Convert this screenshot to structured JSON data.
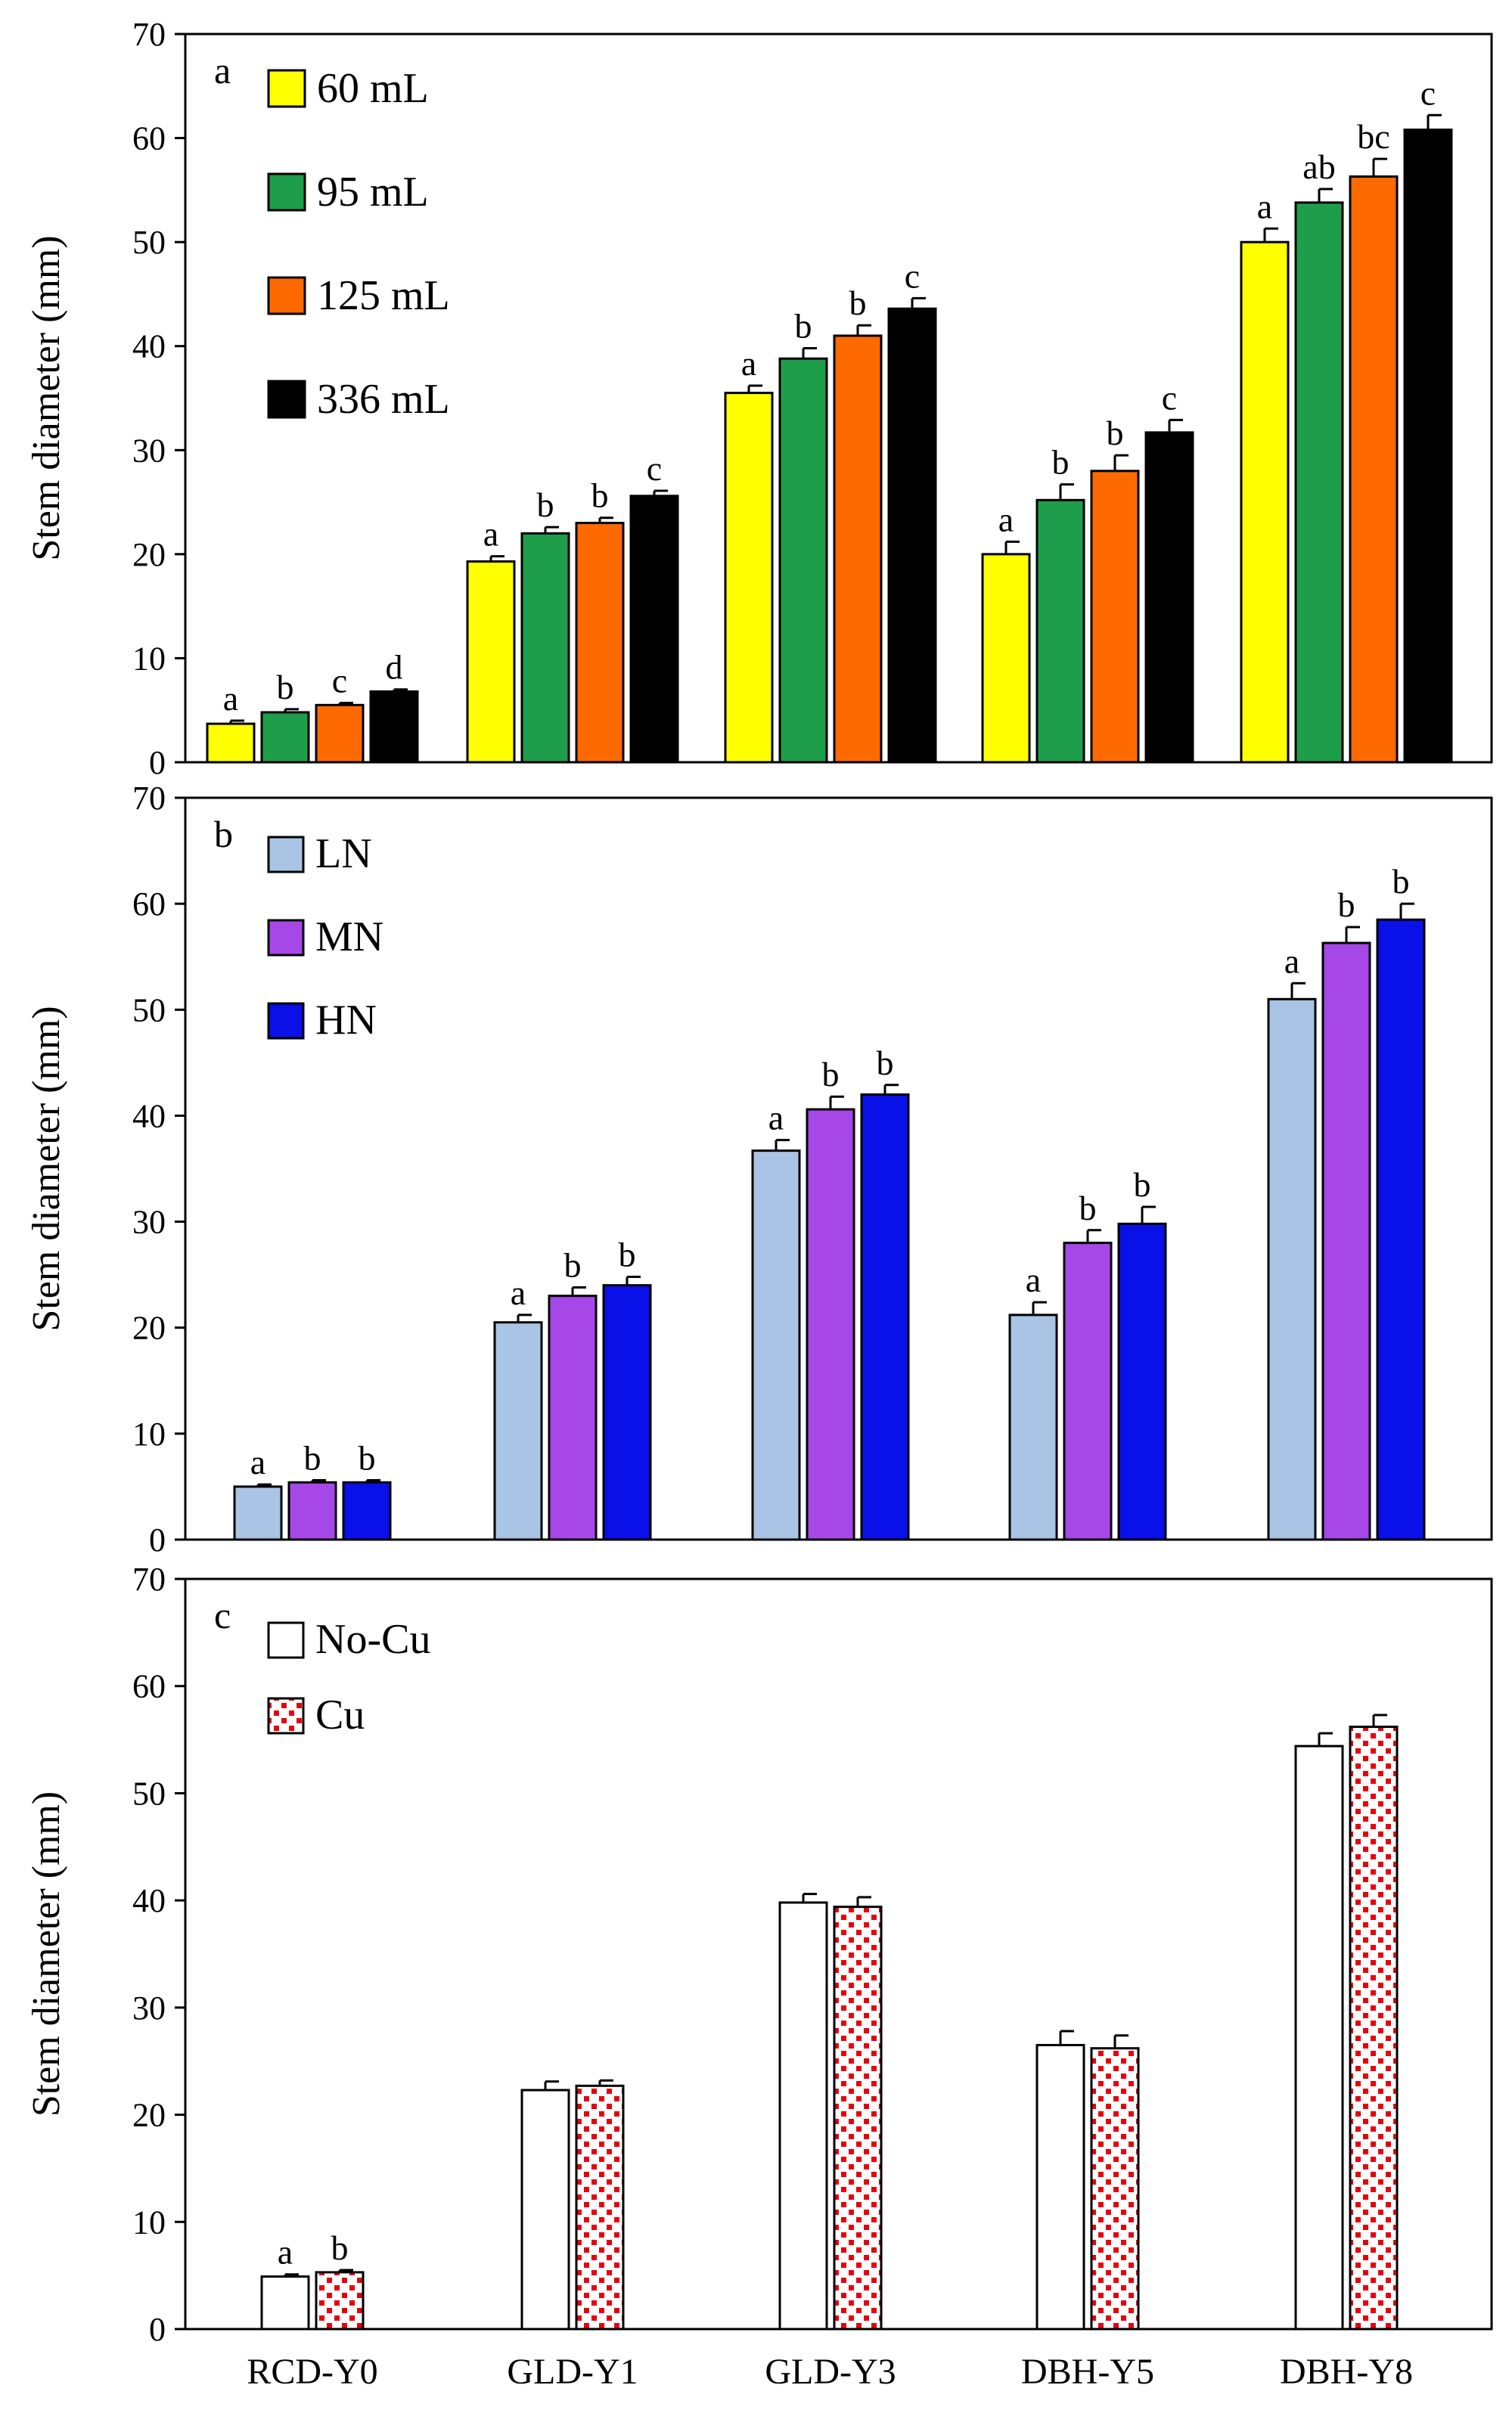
{
  "chart_data": [
    {
      "type": "bar",
      "panel_label": "a",
      "ylabel": "Stem diameter (mm)",
      "xlabel": "",
      "ylim": [
        0,
        70
      ],
      "yticks": [
        0,
        10,
        20,
        30,
        40,
        50,
        60,
        70
      ],
      "categories": [
        "RCD-Y0",
        "GLD-Y1",
        "GLD-Y3",
        "DBH-Y5",
        "DBH-Y8"
      ],
      "legend_position": "top-left",
      "series": [
        {
          "name": "60 mL",
          "color": "#FFFF00",
          "pattern": "solid",
          "values": [
            3.7,
            19.3,
            35.5,
            20.0,
            50.0
          ],
          "errors": [
            0.3,
            0.5,
            0.7,
            1.2,
            1.3
          ],
          "letters": [
            "a",
            "a",
            "a",
            "a",
            "a"
          ]
        },
        {
          "name": "95 mL",
          "color": "#1E9E4A",
          "pattern": "solid",
          "values": [
            4.8,
            22.0,
            38.8,
            25.2,
            53.8
          ],
          "errors": [
            0.3,
            0.6,
            1.0,
            1.5,
            1.3
          ],
          "letters": [
            "b",
            "b",
            "b",
            "b",
            "ab"
          ]
        },
        {
          "name": "125 mL",
          "color": "#FF6A00",
          "pattern": "solid",
          "values": [
            5.5,
            23.0,
            41.0,
            28.0,
            56.3
          ],
          "errors": [
            0.2,
            0.5,
            1.0,
            1.5,
            1.7
          ],
          "letters": [
            "c",
            "b",
            "b",
            "b",
            "bc"
          ]
        },
        {
          "name": "336 mL",
          "color": "#000000",
          "pattern": "solid",
          "values": [
            6.8,
            25.6,
            43.6,
            31.7,
            60.8
          ],
          "errors": [
            0.2,
            0.5,
            1.0,
            1.2,
            1.4
          ],
          "letters": [
            "d",
            "c",
            "c",
            "c",
            "c"
          ]
        }
      ]
    },
    {
      "type": "bar",
      "panel_label": "b",
      "ylabel": "Stem diameter (mm)",
      "xlabel": "",
      "ylim": [
        0,
        70
      ],
      "yticks": [
        0,
        10,
        20,
        30,
        40,
        50,
        60,
        70
      ],
      "categories": [
        "RCD-Y0",
        "GLD-Y1",
        "GLD-Y3",
        "DBH-Y5",
        "DBH-Y8"
      ],
      "legend_position": "top-left",
      "series": [
        {
          "name": "LN",
          "color": "#A9C4E4",
          "pattern": "solid",
          "values": [
            5.0,
            20.5,
            36.7,
            21.2,
            51.0
          ],
          "errors": [
            0.2,
            0.7,
            1.0,
            1.2,
            1.5
          ],
          "letters": [
            "a",
            "a",
            "a",
            "a",
            "a"
          ]
        },
        {
          "name": "MN",
          "color": "#A647E8",
          "pattern": "solid",
          "values": [
            5.4,
            23.0,
            40.6,
            28.0,
            56.3
          ],
          "errors": [
            0.2,
            0.8,
            1.2,
            1.2,
            1.5
          ],
          "letters": [
            "b",
            "b",
            "b",
            "b",
            "b"
          ]
        },
        {
          "name": "HN",
          "color": "#0A10E8",
          "pattern": "solid",
          "values": [
            5.4,
            24.0,
            42.0,
            29.8,
            58.5
          ],
          "errors": [
            0.2,
            0.8,
            0.9,
            1.6,
            1.5
          ],
          "letters": [
            "b",
            "b",
            "b",
            "b",
            "b"
          ]
        }
      ]
    },
    {
      "type": "bar",
      "panel_label": "c",
      "ylabel": "Stem diameter (mm)",
      "xlabel": "",
      "ylim": [
        0,
        70
      ],
      "yticks": [
        0,
        10,
        20,
        30,
        40,
        50,
        60,
        70
      ],
      "categories": [
        "RCD-Y0",
        "GLD-Y1",
        "GLD-Y3",
        "DBH-Y5",
        "DBH-Y8"
      ],
      "legend_position": "top-left",
      "series": [
        {
          "name": "No-Cu",
          "color": "#FFFFFF",
          "pattern": "solid",
          "values": [
            4.9,
            22.3,
            39.8,
            26.5,
            54.4
          ],
          "errors": [
            0.2,
            0.8,
            0.8,
            1.3,
            1.2
          ],
          "letters": [
            "a",
            "",
            "",
            "",
            ""
          ]
        },
        {
          "name": "Cu",
          "color": "#E8000D",
          "pattern": "dots",
          "values": [
            5.3,
            22.7,
            39.4,
            26.2,
            56.2
          ],
          "errors": [
            0.2,
            0.5,
            0.9,
            1.2,
            1.1
          ],
          "letters": [
            "b",
            "",
            "",
            "",
            ""
          ]
        }
      ]
    }
  ]
}
